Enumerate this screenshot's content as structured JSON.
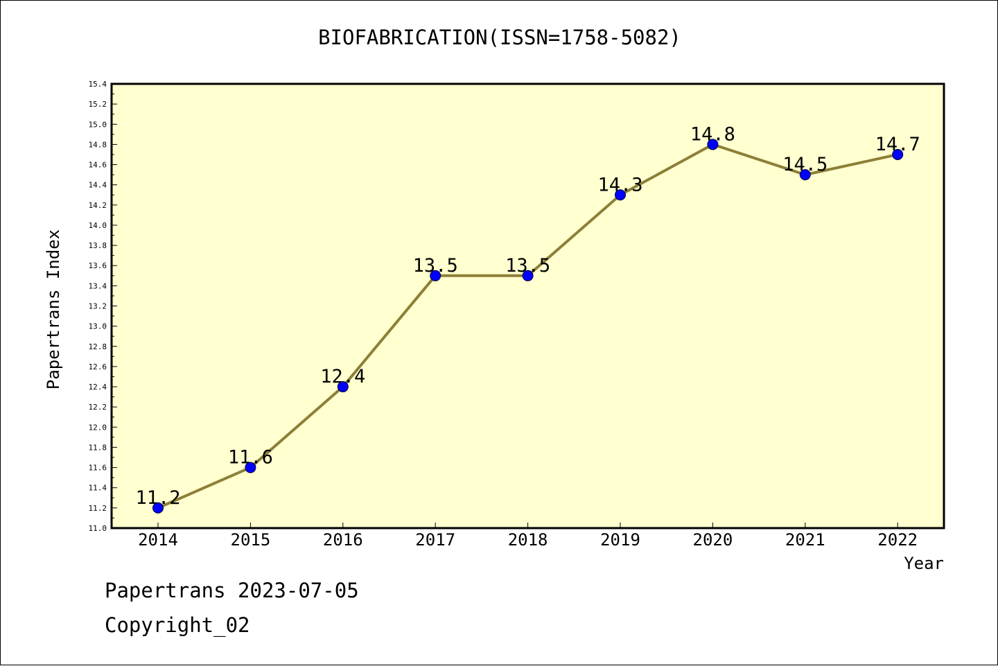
{
  "chart_data": {
    "type": "line",
    "title": "BIOFABRICATION(ISSN=1758-5082)",
    "xlabel": "Year",
    "ylabel": "Papertrans Index",
    "categories": [
      "2014",
      "2015",
      "2016",
      "2017",
      "2018",
      "2019",
      "2020",
      "2021",
      "2022"
    ],
    "series": [
      {
        "values": [
          11.2,
          11.6,
          12.4,
          13.5,
          13.5,
          14.3,
          14.8,
          14.5,
          14.7
        ],
        "data_labels": [
          "11.2",
          "11.6",
          "12.4",
          "13.5",
          "13.5",
          "14.3",
          "14.8",
          "14.5",
          "14.7"
        ]
      }
    ],
    "ylim": [
      11.0,
      15.4
    ],
    "yticks": [
      "11.0",
      "11.2",
      "11.4",
      "11.6",
      "11.8",
      "12.0",
      "12.2",
      "12.4",
      "12.6",
      "12.8",
      "13.0",
      "13.2",
      "13.4",
      "13.6",
      "13.8",
      "14.0",
      "14.2",
      "14.4",
      "14.6",
      "14.8",
      "15.0",
      "15.2",
      "15.4"
    ],
    "grid": false,
    "colors": {
      "plot_background": "#ffffd0",
      "line": "#8c7f37",
      "marker": "#0000ff"
    }
  },
  "footer": {
    "line1": "Papertrans 2023-07-05",
    "line2": "Copyright_02"
  }
}
